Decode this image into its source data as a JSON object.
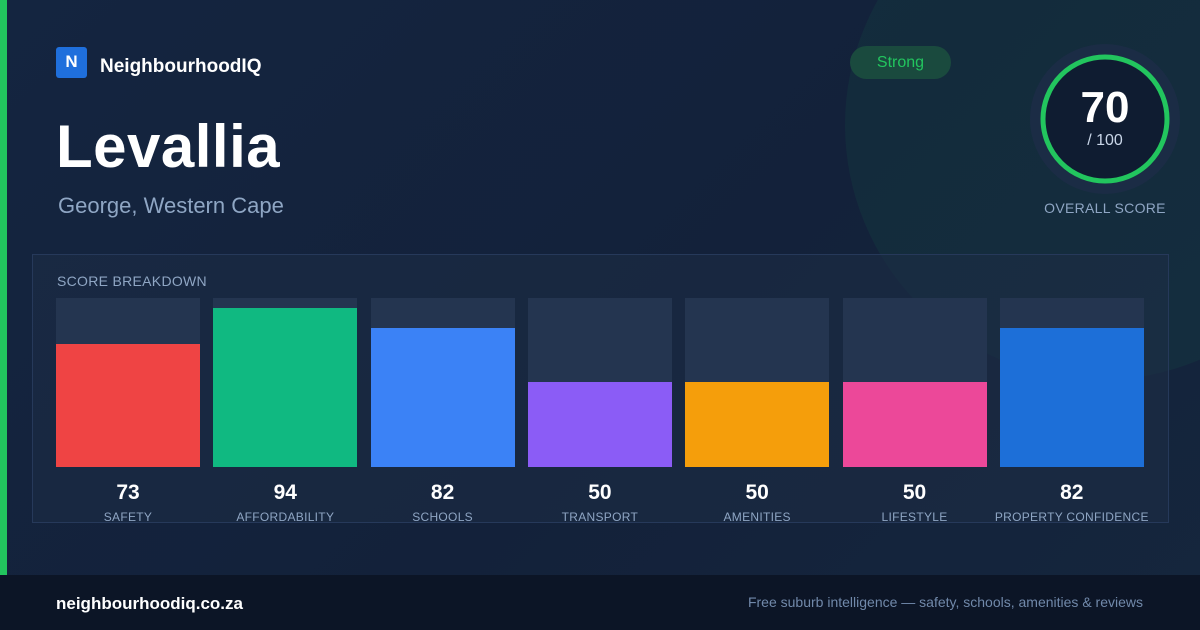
{
  "brand": {
    "logo_letter": "N",
    "name": "NeighbourhoodIQ"
  },
  "suburb": {
    "name": "Levallia",
    "location": "George, Western Cape"
  },
  "badge": {
    "label": "Strong"
  },
  "overall": {
    "score": "70",
    "max": "/ 100",
    "label": "OVERALL SCORE",
    "fraction": 0.7
  },
  "colors": {
    "accent": "#22c55e",
    "safety": "#ef4444",
    "affordability": "#10b981",
    "schools": "#3b82f6",
    "transport": "#8b5cf6",
    "amenities": "#f59e0b",
    "lifestyle": "#ec4899",
    "property_confidence": "#1d6fd8"
  },
  "breakdown": {
    "title": "SCORE BREAKDOWN",
    "items": [
      {
        "label": "SAFETY",
        "value": "73",
        "score": 73,
        "color": "#ef4444"
      },
      {
        "label": "AFFORDABILITY",
        "value": "94",
        "score": 94,
        "color": "#10b981"
      },
      {
        "label": "SCHOOLS",
        "value": "82",
        "score": 82,
        "color": "#3b82f6"
      },
      {
        "label": "TRANSPORT",
        "value": "50",
        "score": 50,
        "color": "#8b5cf6"
      },
      {
        "label": "AMENITIES",
        "value": "50",
        "score": 50,
        "color": "#f59e0b"
      },
      {
        "label": "LIFESTYLE",
        "value": "50",
        "score": 50,
        "color": "#ec4899"
      },
      {
        "label": "PROPERTY CONFIDENCE",
        "value": "82",
        "score": 82,
        "color": "#1d6fd8"
      }
    ]
  },
  "footer": {
    "url": "neighbourhoodiq.co.za",
    "tagline": "Free suburb intelligence — safety, schools, amenities & reviews"
  }
}
